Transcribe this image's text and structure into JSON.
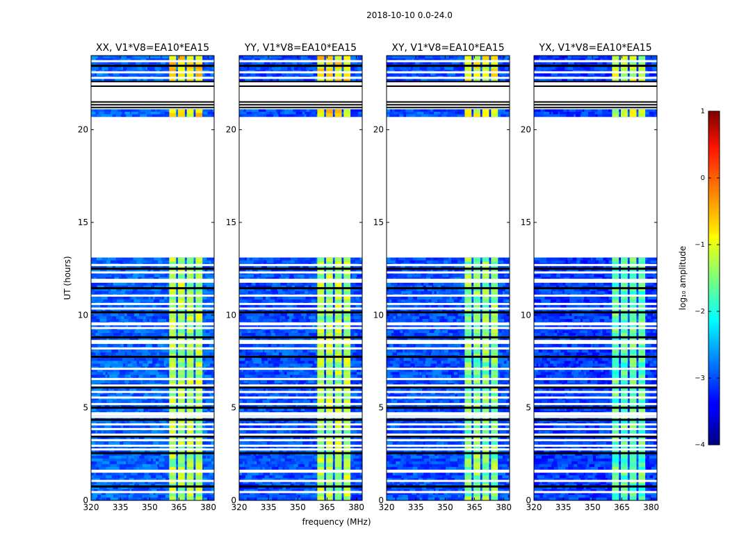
{
  "chart_data": {
    "type": "heatmap",
    "suptitle": "2018-10-10 0.0-24.0",
    "xlabel": "frequency (MHz)",
    "ylabel": "UT (hours)",
    "xlim": [
      320,
      383
    ],
    "ylim": [
      0,
      24
    ],
    "xticks": [
      320,
      335,
      350,
      365,
      380
    ],
    "yticks": [
      0,
      5,
      10,
      15,
      20
    ],
    "panels": [
      {
        "title": "XX, V1*V8=EA10*EA15",
        "background_level": -2.9,
        "rfi_level": -1.3
      },
      {
        "title": "YY, V1*V8=EA10*EA15",
        "background_level": -3.0,
        "rfi_level": -1.3
      },
      {
        "title": "XY, V1*V8=EA10*EA15",
        "background_level": -3.0,
        "rfi_level": -1.5
      },
      {
        "title": "YX, V1*V8=EA10*EA15",
        "background_level": -3.1,
        "rfi_level": -1.7
      }
    ],
    "rfi_band_mhz": [
      360,
      379
    ],
    "rfi_channels_mhz": [
      [
        360,
        363.5
      ],
      [
        364.5,
        368
      ],
      [
        369,
        372.5
      ],
      [
        373.5,
        377
      ]
    ],
    "data_segments_ut": [
      [
        0,
        13.1
      ],
      [
        20.7,
        21.1
      ],
      [
        22.6,
        24
      ]
    ],
    "flagged_rows_ut": [
      0.45,
      0.75,
      1.05,
      1.55,
      1.6,
      2.55,
      2.75,
      2.95,
      3.25,
      3.45,
      3.55,
      3.85,
      4.1,
      4.35,
      4.5,
      4.62,
      4.7,
      5.0,
      5.2,
      5.55,
      5.85,
      6.1,
      6.2,
      6.55,
      7.1,
      7.75,
      8.2,
      8.5,
      8.6,
      8.8,
      9.3,
      9.5,
      9.55,
      10.15,
      10.35,
      10.6,
      11.05,
      11.45,
      11.8,
      11.9,
      12.3,
      12.5,
      12.7,
      22.8,
      23.1,
      23.45,
      23.7
    ],
    "colorbar": {
      "label": "log₁₀ amplitude",
      "range": [
        -4,
        1
      ],
      "ticks": [
        "1",
        "0",
        "−1",
        "−2",
        "−3",
        "−4"
      ],
      "colormap": "jet"
    }
  }
}
